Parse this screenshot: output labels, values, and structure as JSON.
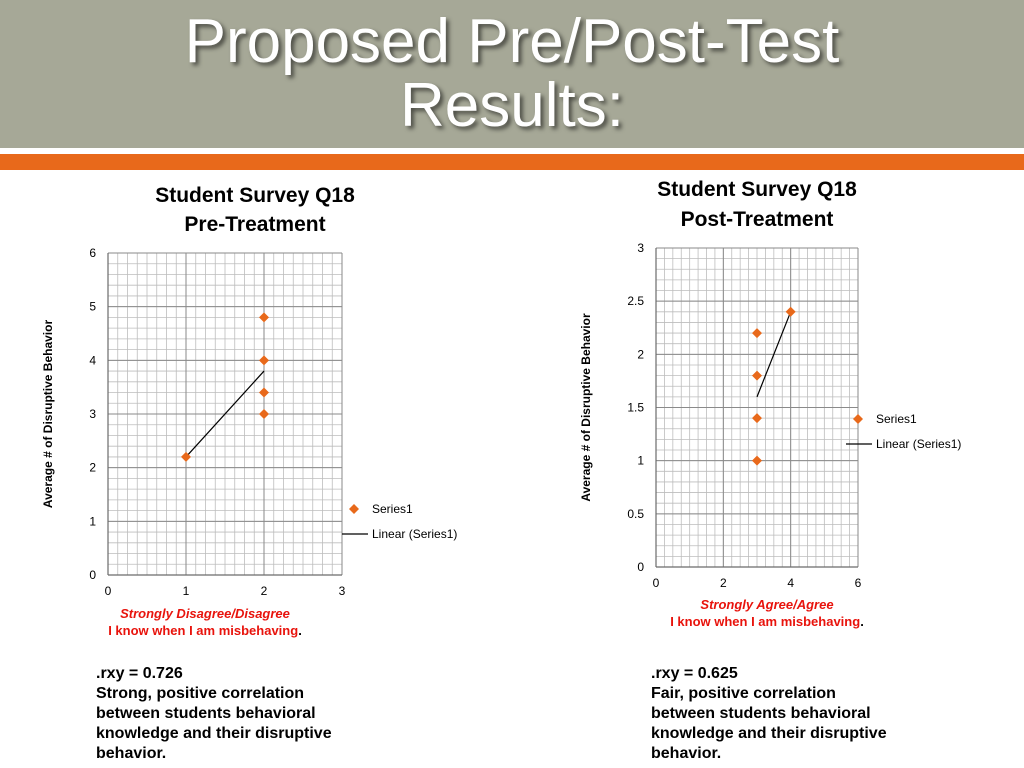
{
  "slide": {
    "title": "Proposed Pre/Post-Test\nResults:",
    "accent_color": "#e8691b",
    "header_color": "#a6a897"
  },
  "notes": {
    "pre": {
      "stat": ".rxy = 0.726",
      "lines": [
        "Strong, positive correlation",
        "between students behavioral",
        "knowledge and their disruptive",
        "behavior."
      ]
    },
    "post": {
      "stat": " .rxy = 0.625",
      "lines": [
        "Fair, positive correlation",
        "between students behavioral",
        "knowledge and their disruptive",
        "behavior."
      ]
    }
  },
  "chart_data": [
    {
      "type": "scatter",
      "title": [
        "Student Survey Q18",
        "Pre-Treatment"
      ],
      "xlabel_lines": [
        "Strongly Disagree/Disagree",
        "I know when I am misbehaving",
        "."
      ],
      "ylabel": "Average # of Disruptive Behavior",
      "xlim": [
        0,
        3
      ],
      "ylim": [
        0,
        6
      ],
      "xticks": [
        0,
        1,
        2,
        3
      ],
      "yticks": [
        0,
        1,
        2,
        3,
        4,
        5,
        6
      ],
      "grid": true,
      "marker_color": "#e8691b",
      "series": [
        {
          "name": "Series1",
          "x": [
            1,
            2,
            2,
            2,
            2
          ],
          "y": [
            2.2,
            4.8,
            4.0,
            3.4,
            3.0
          ]
        }
      ],
      "trendline": {
        "name": "Linear (Series1)",
        "x": [
          1,
          2
        ],
        "y": [
          2.2,
          3.8
        ]
      },
      "legend": {
        "position": "right",
        "entries": [
          "Series1",
          "Linear (Series1)"
        ]
      }
    },
    {
      "type": "scatter",
      "title": [
        "Student Survey Q18",
        "Post-Treatment"
      ],
      "xlabel_lines": [
        "Strongly Agree/Agree",
        "I know when I am misbehaving",
        "."
      ],
      "ylabel": "Average # of Disruptive Behavior",
      "xlim": [
        0,
        6
      ],
      "ylim": [
        0,
        3
      ],
      "xticks": [
        0,
        2,
        4,
        6
      ],
      "yticks": [
        0,
        0.5,
        1,
        1.5,
        2,
        2.5,
        3
      ],
      "grid": true,
      "marker_color": "#e8691b",
      "series": [
        {
          "name": "Series1",
          "x": [
            3,
            3,
            3,
            3,
            4
          ],
          "y": [
            2.2,
            1.8,
            1.4,
            1.0,
            2.4
          ]
        }
      ],
      "trendline": {
        "name": "Linear (Series1)",
        "x": [
          3,
          4
        ],
        "y": [
          1.6,
          2.4
        ]
      },
      "legend": {
        "position": "right",
        "entries": [
          "Series1",
          "Linear (Series1)"
        ]
      }
    }
  ]
}
